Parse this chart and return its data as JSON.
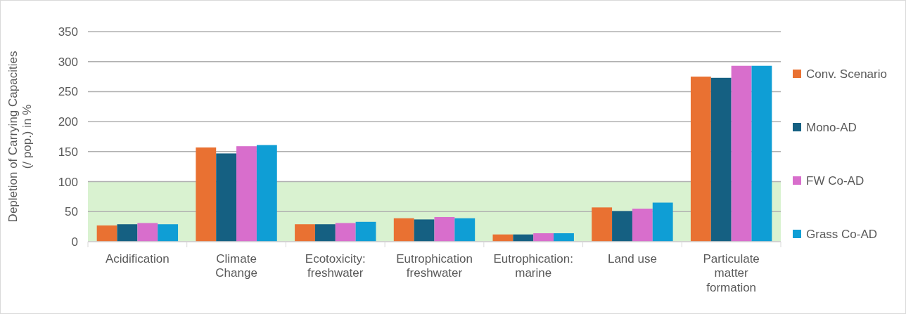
{
  "chart_data": {
    "type": "bar",
    "ylabel": "Depletion of Carrying Capacities (/ pop.) in %",
    "categories": [
      "Acidification",
      "Climate Change",
      "Ecotoxicity: freshwater",
      "Eutrophication freshwater",
      "Eutrophication: marine",
      "Land use",
      "Particulate matter formation"
    ],
    "series": [
      {
        "name": "Conv. Scenario",
        "color": "#e97132",
        "values": [
          27,
          157,
          29,
          39,
          12,
          57,
          275
        ]
      },
      {
        "name": "Mono-AD",
        "color": "#156082",
        "values": [
          29,
          147,
          29,
          37,
          12,
          51,
          273
        ]
      },
      {
        "name": "FW Co-AD",
        "color": "#d86ecc",
        "values": [
          31,
          159,
          31,
          41,
          14,
          55,
          293
        ]
      },
      {
        "name": "Grass Co-AD",
        "color": "#0f9ed5",
        "values": [
          29,
          161,
          33,
          39,
          14,
          65,
          293
        ]
      }
    ],
    "ylim": [
      0,
      350
    ],
    "yticks": [
      0,
      50,
      100,
      150,
      200,
      250,
      300,
      350
    ],
    "grid": "y",
    "legend": "right",
    "bands": [
      {
        "axis": "y",
        "from": 0,
        "to": 100,
        "color": "#d9f2d0"
      }
    ]
  }
}
